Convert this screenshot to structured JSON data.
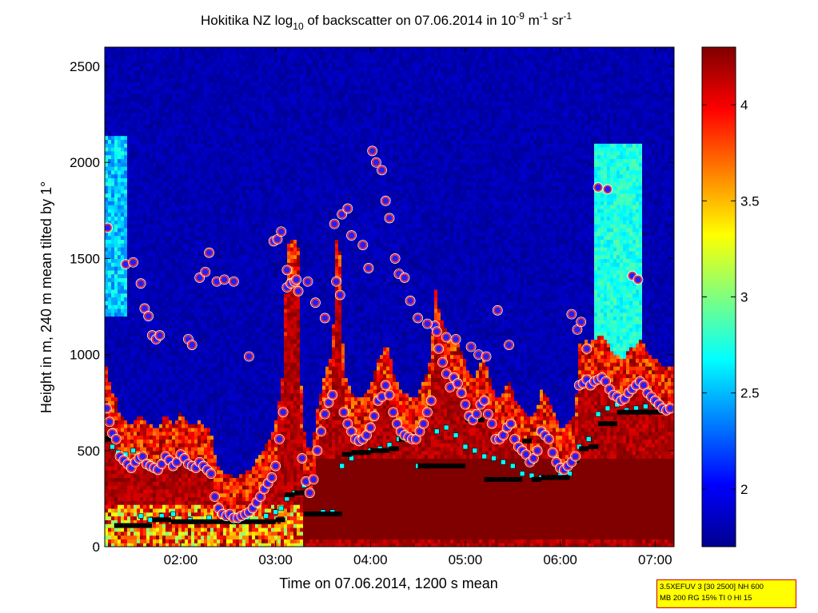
{
  "chart_data": {
    "type": "heatmap",
    "title_parts": {
      "prefix": "Hokitika NZ log",
      "log_sub": "10",
      "middle": " of backscatter on 07.06.2014 in 10",
      "exp1": "-9",
      "m": " m",
      "exp2": "-1",
      "sr": " sr",
      "exp3": "-1"
    },
    "xlabel": "Time on 07.06.2014, 1200 s mean",
    "ylabel": "Height in m, 240 m mean tilted by 1°",
    "x_range_hours": [
      1.2,
      7.2
    ],
    "xticks": [
      {
        "value": 2,
        "label": "02:00"
      },
      {
        "value": 3,
        "label": "03:00"
      },
      {
        "value": 4,
        "label": "04:00"
      },
      {
        "value": 5,
        "label": "05:00"
      },
      {
        "value": 6,
        "label": "06:00"
      },
      {
        "value": 7,
        "label": "07:00"
      }
    ],
    "y_range": [
      0,
      2600
    ],
    "yticks": [
      {
        "value": 0,
        "label": "0"
      },
      {
        "value": 500,
        "label": "500"
      },
      {
        "value": 1000,
        "label": "1000"
      },
      {
        "value": 1500,
        "label": "1500"
      },
      {
        "value": 2000,
        "label": "2000"
      },
      {
        "value": 2500,
        "label": "2500"
      }
    ],
    "colorbar": {
      "range": [
        1.7,
        4.3
      ],
      "colormap": "jet",
      "ticks": [
        {
          "value": 2,
          "label": "2"
        },
        {
          "value": 2.5,
          "label": "2.5"
        },
        {
          "value": 3,
          "label": "3"
        },
        {
          "value": 3.5,
          "label": "3.5"
        },
        {
          "value": 4,
          "label": "4"
        }
      ]
    },
    "cloud_base_points": {
      "style": "red circle with blue fill and white outline",
      "x": [
        1.22,
        1.25,
        1.28,
        1.32,
        1.36,
        1.4,
        1.44,
        1.48,
        1.52,
        1.56,
        1.6,
        1.64,
        1.68,
        1.72,
        1.76,
        1.8,
        1.84,
        1.88,
        1.92,
        1.96,
        2.0,
        2.04,
        2.08,
        2.12,
        2.16,
        2.2,
        2.24,
        2.28,
        2.32,
        2.36,
        2.4,
        2.44,
        2.48,
        2.52,
        2.56,
        2.6,
        2.64,
        2.68,
        2.72,
        2.76,
        2.8,
        2.84,
        2.88,
        2.92,
        2.96,
        3.0,
        3.04,
        3.08,
        3.12,
        3.16,
        3.2,
        3.24,
        3.28,
        3.32,
        3.36,
        3.4,
        3.44,
        3.48,
        3.52,
        3.56,
        3.6,
        3.64,
        3.68,
        3.72,
        3.76,
        3.8,
        3.84,
        3.88,
        3.92,
        3.96,
        4.0,
        4.04,
        4.08,
        4.12,
        4.16,
        4.2,
        4.24,
        4.28,
        4.32,
        4.36,
        4.4,
        4.44,
        4.48,
        4.52,
        4.56,
        4.6,
        4.64,
        4.68,
        4.72,
        4.76,
        4.8,
        4.84,
        4.88,
        4.92,
        4.96,
        5.0,
        5.04,
        5.08,
        5.12,
        5.16,
        5.2,
        5.24,
        5.28,
        5.32,
        5.36,
        5.4,
        5.44,
        5.48,
        5.52,
        5.56,
        5.6,
        5.64,
        5.68,
        5.72,
        5.76,
        5.8,
        5.84,
        5.88,
        5.92,
        5.96,
        6.0,
        6.04,
        6.08,
        6.12,
        6.16,
        6.2,
        6.24,
        6.28,
        6.32,
        6.36,
        6.4,
        6.44,
        6.48,
        6.52,
        6.56,
        6.6,
        6.64,
        6.68,
        6.72,
        6.76,
        6.8,
        6.84,
        6.88,
        6.92,
        6.96,
        7.0,
        7.04,
        7.08,
        7.12,
        7.16
      ],
      "y": [
        720,
        650,
        590,
        560,
        470,
        450,
        430,
        410,
        440,
        460,
        470,
        430,
        420,
        410,
        400,
        430,
        470,
        450,
        420,
        440,
        480,
        460,
        430,
        420,
        410,
        440,
        420,
        400,
        380,
        260,
        200,
        170,
        160,
        170,
        150,
        150,
        160,
        170,
        180,
        200,
        230,
        260,
        300,
        330,
        360,
        420,
        560,
        700,
        1350,
        1370,
        1380,
        1330,
        460,
        340,
        280,
        350,
        500,
        600,
        690,
        750,
        790,
        1380,
        1310,
        700,
        640,
        600,
        560,
        550,
        560,
        580,
        620,
        680,
        760,
        780,
        840,
        790,
        700,
        640,
        600,
        580,
        570,
        560,
        560,
        600,
        640,
        700,
        760,
        1150,
        1030,
        960,
        900,
        830,
        880,
        850,
        800,
        740,
        680,
        660,
        690,
        740,
        760,
        690,
        640,
        560,
        560,
        580,
        620,
        640,
        560,
        520,
        500,
        480,
        440,
        460,
        500,
        600,
        580,
        560,
        490,
        440,
        410,
        400,
        420,
        440,
        470,
        840,
        850,
        870,
        840,
        860,
        870,
        880,
        860,
        820,
        790,
        780,
        760,
        770,
        800,
        820,
        840,
        860,
        840,
        800,
        780,
        760,
        740,
        720,
        710,
        720
      ]
    },
    "cloud_base_upper_points": {
      "x": [
        1.23,
        1.42,
        1.5,
        1.58,
        1.62,
        1.66,
        1.7,
        1.74,
        1.78,
        2.08,
        2.12,
        2.2,
        2.26,
        2.3,
        2.38,
        2.46,
        2.56,
        2.72,
        2.98,
        3.02,
        3.06,
        3.12,
        3.22,
        3.34,
        3.42,
        3.52,
        3.62,
        3.7,
        3.76,
        3.8,
        3.92,
        3.98,
        4.02,
        4.06,
        4.12,
        4.16,
        4.2,
        4.26,
        4.3,
        4.36,
        4.42,
        4.5,
        4.6,
        4.7,
        4.8,
        4.9,
        5.06,
        5.14,
        5.22,
        5.34,
        5.46,
        6.12,
        6.18,
        6.22,
        6.28,
        6.4,
        6.5,
        6.76,
        6.82
      ],
      "y": [
        1660,
        1470,
        1480,
        1370,
        1240,
        1200,
        1100,
        1080,
        1100,
        1080,
        1050,
        1400,
        1430,
        1530,
        1380,
        1390,
        1380,
        990,
        1590,
        1600,
        1640,
        1440,
        1390,
        1380,
        1270,
        1190,
        1680,
        1730,
        1760,
        1620,
        1570,
        1450,
        2060,
        2000,
        1960,
        1800,
        1710,
        1500,
        1420,
        1400,
        1280,
        1190,
        1160,
        1120,
        1090,
        1080,
        1040,
        1000,
        990,
        1230,
        1050,
        1210,
        1130,
        1170,
        1030,
        1870,
        1860,
        1410,
        1390
      ]
    },
    "boundary_layer_points": {
      "style": "black square",
      "x": [
        1.15,
        1.25,
        1.35,
        1.45,
        1.55,
        1.65,
        1.75,
        1.85,
        1.95,
        2.05,
        2.15,
        2.25,
        2.35,
        2.45,
        2.55,
        2.65,
        2.75,
        2.85,
        2.95,
        3.05,
        3.15,
        3.25,
        3.35,
        3.45,
        3.55,
        3.65,
        3.75,
        3.85,
        3.95,
        4.05,
        4.15,
        4.25,
        4.35,
        4.45,
        4.55,
        4.65,
        4.75,
        4.85,
        4.95,
        5.05,
        5.15,
        5.25,
        5.35,
        5.45,
        5.55,
        5.65,
        5.75,
        5.85,
        5.95,
        6.05,
        6.15,
        6.25,
        6.35,
        6.45,
        6.55,
        6.65,
        6.75,
        6.85,
        6.95,
        7.05,
        7.15
      ],
      "y": [
        560,
        560,
        110,
        110,
        110,
        110,
        140,
        140,
        130,
        130,
        130,
        130,
        130,
        130,
        130,
        130,
        130,
        130,
        130,
        140,
        270,
        280,
        170,
        170,
        170,
        170,
        480,
        490,
        490,
        500,
        500,
        510,
        560,
        560,
        420,
        420,
        420,
        420,
        420,
        660,
        660,
        350,
        350,
        350,
        350,
        550,
        350,
        360,
        360,
        360,
        450,
        510,
        520,
        640,
        640,
        700,
        700,
        700,
        700,
        700,
        710
      ]
    },
    "boundary_layer_alt_points": {
      "style": "cyan square",
      "x": [
        1.2,
        1.28,
        1.34,
        1.42,
        1.5,
        1.58,
        1.68,
        1.8,
        1.92,
        2.1,
        2.3,
        2.5,
        2.7,
        2.9,
        3.0,
        3.06,
        3.12,
        3.2,
        3.3,
        3.4,
        3.5,
        3.6,
        3.7,
        3.8,
        3.9,
        4.0,
        4.1,
        4.2,
        4.3,
        4.4,
        4.5,
        4.6,
        4.7,
        4.8,
        4.9,
        5.0,
        5.1,
        5.2,
        5.3,
        5.4,
        5.5,
        5.6,
        5.7,
        5.8,
        5.9,
        6.0,
        6.1,
        6.2,
        6.3,
        6.4,
        6.5,
        6.6,
        6.7,
        6.8,
        6.9,
        7.0,
        7.1
      ],
      "y": [
        560,
        520,
        490,
        480,
        500,
        160,
        140,
        160,
        170,
        140,
        150,
        170,
        150,
        160,
        180,
        200,
        250,
        280,
        320,
        170,
        180,
        180,
        420,
        460,
        490,
        500,
        510,
        530,
        560,
        560,
        420,
        420,
        600,
        620,
        580,
        520,
        500,
        470,
        460,
        440,
        420,
        380,
        370,
        360,
        360,
        370,
        380,
        520,
        560,
        690,
        720,
        740,
        710,
        720,
        730,
        740,
        710
      ]
    }
  },
  "info_box": {
    "line1": "3.5XEFUV 3 [30 2500] NH 600",
    "line2": "MB 200 RG 15% TI 0 HI 15"
  }
}
